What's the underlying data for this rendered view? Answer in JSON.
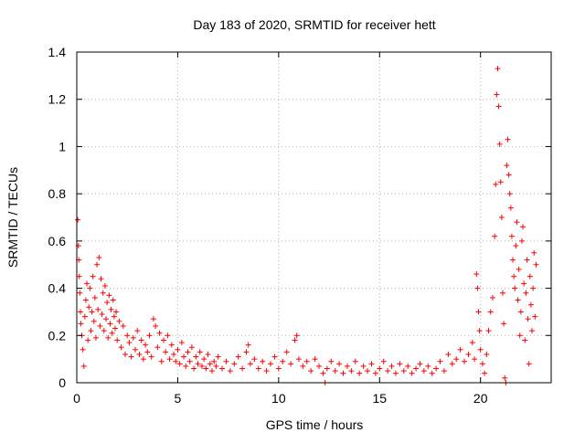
{
  "chart_data": {
    "type": "scatter",
    "title": "Day 183 of 2020, SRMTID for receiver hett",
    "xlabel": "GPS time / hours",
    "ylabel": "SRMTID / TECUs",
    "xlim": [
      0,
      23.5
    ],
    "ylim": [
      0,
      1.4
    ],
    "xticks": [
      0,
      5,
      10,
      15,
      20
    ],
    "xtick_labels": [
      "0",
      "5",
      "10",
      "15",
      "20"
    ],
    "yticks": [
      0,
      0.2,
      0.4,
      0.6,
      0.8,
      1.0,
      1.2,
      1.4
    ],
    "ytick_labels": [
      "0",
      "0.2",
      "0.4",
      "0.6",
      "0.8",
      "1",
      "1.2",
      "1.4"
    ],
    "grid": true,
    "legend": "none",
    "marker": "+",
    "color": "#ff0000",
    "series": [
      {
        "name": "SRMTID",
        "points": [
          [
            0.05,
            0.69
          ],
          [
            0.08,
            0.58
          ],
          [
            0.1,
            0.52
          ],
          [
            0.12,
            0.45
          ],
          [
            0.15,
            0.38
          ],
          [
            0.18,
            0.3
          ],
          [
            0.2,
            0.25
          ],
          [
            0.25,
            0.2
          ],
          [
            0.3,
            0.14
          ],
          [
            0.35,
            0.07
          ],
          [
            0.4,
            0.28
          ],
          [
            0.45,
            0.35
          ],
          [
            0.5,
            0.42
          ],
          [
            0.55,
            0.18
          ],
          [
            0.6,
            0.32
          ],
          [
            0.65,
            0.4
          ],
          [
            0.7,
            0.22
          ],
          [
            0.75,
            0.3
          ],
          [
            0.8,
            0.45
          ],
          [
            0.85,
            0.26
          ],
          [
            0.9,
            0.36
          ],
          [
            0.95,
            0.19
          ],
          [
            1.0,
            0.5
          ],
          [
            1.05,
            0.31
          ],
          [
            1.1,
            0.53
          ],
          [
            1.15,
            0.24
          ],
          [
            1.2,
            0.44
          ],
          [
            1.25,
            0.29
          ],
          [
            1.3,
            0.38
          ],
          [
            1.35,
            0.22
          ],
          [
            1.4,
            0.41
          ],
          [
            1.45,
            0.27
          ],
          [
            1.5,
            0.34
          ],
          [
            1.55,
            0.19
          ],
          [
            1.6,
            0.37
          ],
          [
            1.65,
            0.25
          ],
          [
            1.7,
            0.31
          ],
          [
            1.75,
            0.21
          ],
          [
            1.8,
            0.35
          ],
          [
            1.85,
            0.28
          ],
          [
            1.9,
            0.23
          ],
          [
            1.95,
            0.3
          ],
          [
            2.0,
            0.18
          ],
          [
            2.1,
            0.26
          ],
          [
            2.2,
            0.15
          ],
          [
            2.3,
            0.24
          ],
          [
            2.4,
            0.12
          ],
          [
            2.5,
            0.2
          ],
          [
            2.6,
            0.17
          ],
          [
            2.7,
            0.11
          ],
          [
            2.8,
            0.19
          ],
          [
            2.9,
            0.14
          ],
          [
            3.0,
            0.22
          ],
          [
            3.1,
            0.12
          ],
          [
            3.2,
            0.18
          ],
          [
            3.3,
            0.1
          ],
          [
            3.4,
            0.16
          ],
          [
            3.5,
            0.13
          ],
          [
            3.6,
            0.2
          ],
          [
            3.7,
            0.11
          ],
          [
            3.8,
            0.27
          ],
          [
            3.9,
            0.24
          ],
          [
            4.0,
            0.15
          ],
          [
            4.1,
            0.21
          ],
          [
            4.2,
            0.09
          ],
          [
            4.3,
            0.18
          ],
          [
            4.4,
            0.13
          ],
          [
            4.5,
            0.2
          ],
          [
            4.6,
            0.1
          ],
          [
            4.7,
            0.16
          ],
          [
            4.8,
            0.12
          ],
          [
            4.9,
            0.09
          ],
          [
            5.0,
            0.14
          ],
          [
            5.1,
            0.08
          ],
          [
            5.2,
            0.17
          ],
          [
            5.3,
            0.11
          ],
          [
            5.4,
            0.07
          ],
          [
            5.5,
            0.13
          ],
          [
            5.6,
            0.09
          ],
          [
            5.7,
            0.15
          ],
          [
            5.8,
            0.06
          ],
          [
            5.9,
            0.11
          ],
          [
            6.0,
            0.08
          ],
          [
            6.1,
            0.13
          ],
          [
            6.2,
            0.07
          ],
          [
            6.3,
            0.1
          ],
          [
            6.4,
            0.06
          ],
          [
            6.5,
            0.12
          ],
          [
            6.6,
            0.08
          ],
          [
            6.7,
            0.05
          ],
          [
            6.8,
            0.09
          ],
          [
            6.9,
            0.07
          ],
          [
            7.0,
            0.11
          ],
          [
            7.2,
            0.06
          ],
          [
            7.4,
            0.09
          ],
          [
            7.6,
            0.05
          ],
          [
            7.8,
            0.08
          ],
          [
            8.0,
            0.11
          ],
          [
            8.2,
            0.06
          ],
          [
            8.4,
            0.13
          ],
          [
            8.5,
            0.16
          ],
          [
            8.6,
            0.08
          ],
          [
            8.8,
            0.1
          ],
          [
            9.0,
            0.06
          ],
          [
            9.2,
            0.09
          ],
          [
            9.4,
            0.05
          ],
          [
            9.6,
            0.08
          ],
          [
            9.8,
            0.11
          ],
          [
            10.0,
            0.06
          ],
          [
            10.2,
            0.09
          ],
          [
            10.4,
            0.13
          ],
          [
            10.6,
            0.08
          ],
          [
            10.8,
            0.18
          ],
          [
            10.9,
            0.2
          ],
          [
            11.0,
            0.1
          ],
          [
            11.2,
            0.07
          ],
          [
            11.4,
            0.09
          ],
          [
            11.6,
            0.05
          ],
          [
            11.8,
            0.1
          ],
          [
            12.0,
            0.07
          ],
          [
            12.2,
            0.04
          ],
          [
            12.3,
            0.0
          ],
          [
            12.4,
            0.06
          ],
          [
            12.6,
            0.09
          ],
          [
            12.8,
            0.05
          ],
          [
            13.0,
            0.08
          ],
          [
            13.2,
            0.04
          ],
          [
            13.4,
            0.07
          ],
          [
            13.6,
            0.05
          ],
          [
            13.8,
            0.09
          ],
          [
            14.0,
            0.04
          ],
          [
            14.2,
            0.07
          ],
          [
            14.4,
            0.05
          ],
          [
            14.6,
            0.08
          ],
          [
            14.8,
            0.04
          ],
          [
            15.0,
            0.06
          ],
          [
            15.2,
            0.09
          ],
          [
            15.4,
            0.05
          ],
          [
            15.6,
            0.07
          ],
          [
            15.8,
            0.04
          ],
          [
            16.0,
            0.08
          ],
          [
            16.2,
            0.05
          ],
          [
            16.4,
            0.07
          ],
          [
            16.6,
            0.04
          ],
          [
            16.8,
            0.06
          ],
          [
            17.0,
            0.08
          ],
          [
            17.2,
            0.05
          ],
          [
            17.4,
            0.07
          ],
          [
            17.6,
            0.04
          ],
          [
            17.8,
            0.06
          ],
          [
            18.0,
            0.09
          ],
          [
            18.2,
            0.05
          ],
          [
            18.4,
            0.12
          ],
          [
            18.6,
            0.08
          ],
          [
            18.8,
            0.1
          ],
          [
            19.0,
            0.14
          ],
          [
            19.2,
            0.09
          ],
          [
            19.4,
            0.12
          ],
          [
            19.6,
            0.17
          ],
          [
            19.7,
            0.1
          ],
          [
            19.8,
            0.46
          ],
          [
            19.85,
            0.4
          ],
          [
            19.9,
            0.3
          ],
          [
            19.95,
            0.22
          ],
          [
            20.0,
            0.14
          ],
          [
            20.1,
            0.08
          ],
          [
            20.2,
            0.04
          ],
          [
            20.3,
            0.12
          ],
          [
            20.4,
            0.22
          ],
          [
            20.5,
            0.3
          ],
          [
            20.6,
            0.36
          ],
          [
            20.7,
            0.62
          ],
          [
            20.75,
            0.84
          ],
          [
            20.8,
            1.22
          ],
          [
            20.85,
            1.33
          ],
          [
            20.9,
            1.17
          ],
          [
            20.95,
            1.01
          ],
          [
            21.0,
            0.85
          ],
          [
            21.05,
            0.7
          ],
          [
            21.1,
            0.38
          ],
          [
            21.15,
            0.25
          ],
          [
            21.2,
            0.02
          ],
          [
            21.25,
            0.0
          ],
          [
            21.3,
            0.92
          ],
          [
            21.35,
            1.03
          ],
          [
            21.4,
            0.88
          ],
          [
            21.45,
            0.8
          ],
          [
            21.5,
            0.74
          ],
          [
            21.55,
            0.62
          ],
          [
            21.6,
            0.52
          ],
          [
            21.65,
            0.45
          ],
          [
            21.7,
            0.4
          ],
          [
            21.75,
            0.58
          ],
          [
            21.8,
            0.68
          ],
          [
            21.85,
            0.35
          ],
          [
            21.9,
            0.48
          ],
          [
            21.95,
            0.2
          ],
          [
            22.0,
            0.3
          ],
          [
            22.05,
            0.6
          ],
          [
            22.1,
            0.66
          ],
          [
            22.15,
            0.42
          ],
          [
            22.2,
            0.18
          ],
          [
            22.25,
            0.38
          ],
          [
            22.3,
            0.52
          ],
          [
            22.35,
            0.27
          ],
          [
            22.4,
            0.08
          ],
          [
            22.45,
            0.45
          ],
          [
            22.5,
            0.33
          ],
          [
            22.55,
            0.22
          ],
          [
            22.6,
            0.4
          ],
          [
            22.65,
            0.55
          ],
          [
            22.7,
            0.28
          ],
          [
            22.75,
            0.5
          ]
        ]
      }
    ]
  }
}
